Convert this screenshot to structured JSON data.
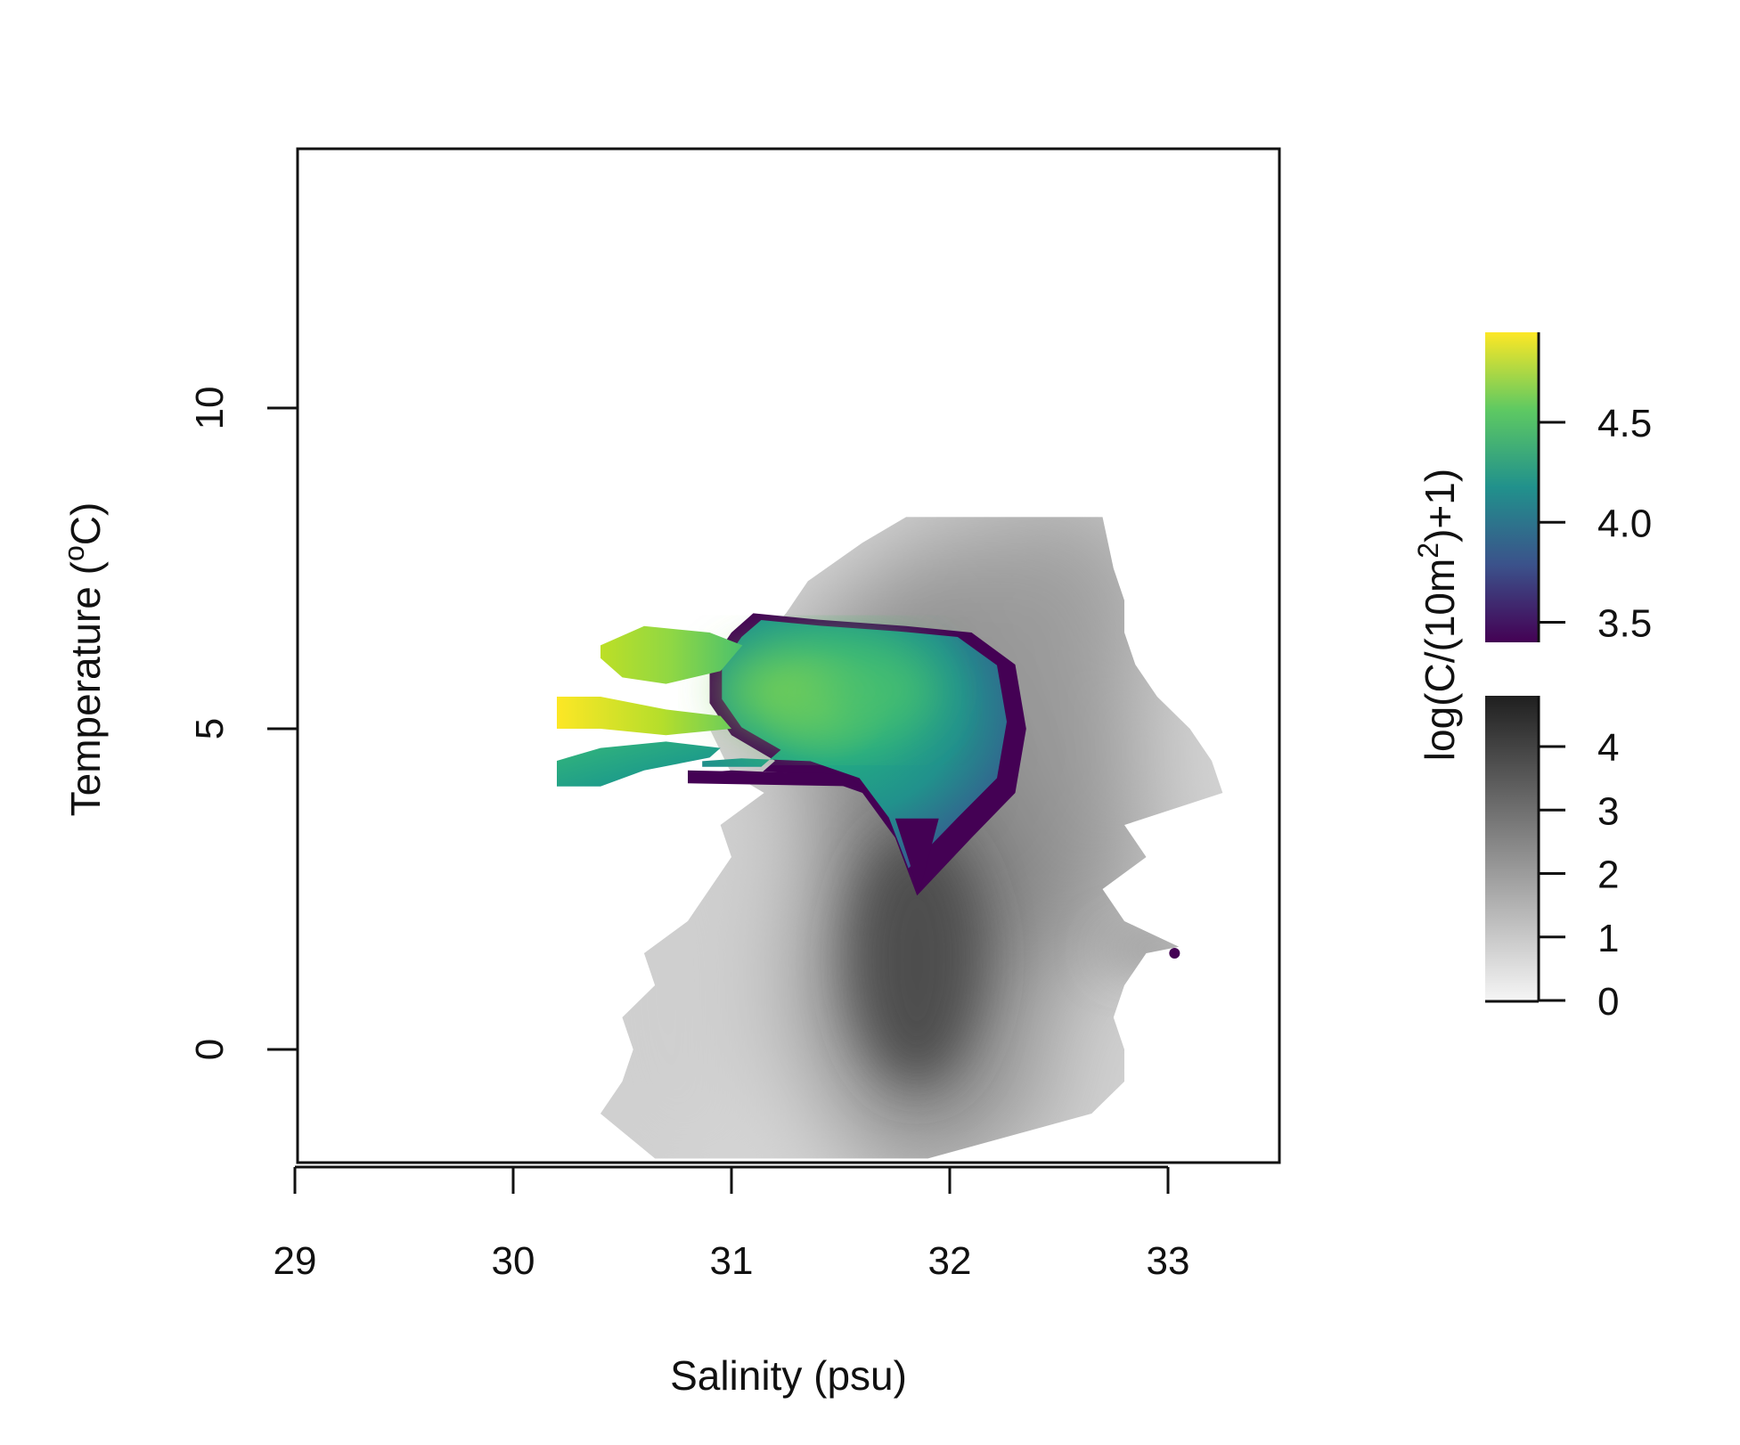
{
  "chart_data": {
    "type": "heatmap",
    "xlabel": "Salinity (psu)",
    "ylabel_parts": [
      "Temperature (",
      "o",
      "C)"
    ],
    "x_ticks": [
      29,
      30,
      31,
      32,
      33
    ],
    "y_ticks": [
      0,
      5,
      10
    ],
    "xlim": [
      29,
      33.5
    ],
    "ylim": [
      -1.8,
      14
    ],
    "colorbar_title_parts": [
      "log(C/(10m",
      "2",
      ")+1)"
    ],
    "colorbar_color": {
      "range": [
        3.4,
        4.95
      ],
      "ticks": [
        "3.5",
        "4.0",
        "4.5"
      ],
      "colors": [
        "#440154",
        "#3b528b",
        "#21918c",
        "#5ec962",
        "#fde725"
      ]
    },
    "colorbar_gray": {
      "range": [
        0,
        4.8
      ],
      "ticks": [
        "0",
        "1",
        "2",
        "3",
        "4"
      ],
      "colors": [
        "#f5f5f5",
        "#1f1f1f"
      ]
    },
    "gray_field": {
      "description_values": "background density log(C/(10m^2)+1), 0 to ~4.8",
      "left_edge": [
        [
          -1.7,
          30.65
        ],
        [
          -1.0,
          30.4
        ],
        [
          -0.5,
          30.5
        ],
        [
          0.0,
          30.55
        ],
        [
          0.5,
          30.5
        ],
        [
          1.0,
          30.65
        ],
        [
          1.5,
          30.6
        ],
        [
          2.0,
          30.8
        ],
        [
          2.5,
          30.9
        ],
        [
          3.0,
          31.0
        ],
        [
          3.5,
          30.95
        ],
        [
          4.0,
          31.15
        ],
        [
          4.3,
          31.0
        ],
        [
          5.0,
          30.9
        ],
        [
          6.0,
          31.05
        ],
        [
          6.8,
          31.25
        ],
        [
          7.3,
          31.35
        ],
        [
          7.9,
          31.6
        ],
        [
          8.3,
          31.8
        ]
      ],
      "right_edge": [
        [
          -1.7,
          31.9
        ],
        [
          -1.0,
          32.65
        ],
        [
          -0.5,
          32.8
        ],
        [
          0.0,
          32.8
        ],
        [
          0.5,
          32.75
        ],
        [
          1.0,
          32.8
        ],
        [
          1.5,
          32.9
        ],
        [
          1.6,
          33.05
        ],
        [
          2.0,
          32.8
        ],
        [
          2.5,
          32.7
        ],
        [
          3.0,
          32.9
        ],
        [
          3.5,
          32.8
        ],
        [
          4.0,
          33.25
        ],
        [
          4.5,
          33.2
        ],
        [
          5.0,
          33.1
        ],
        [
          5.5,
          32.95
        ],
        [
          6.0,
          32.85
        ],
        [
          6.5,
          32.8
        ],
        [
          7.0,
          32.8
        ],
        [
          7.5,
          32.75
        ],
        [
          8.3,
          32.7
        ]
      ],
      "max_center": {
        "salinity": 31.85,
        "temperature": 1.2
      },
      "peak_value": 4.4
    },
    "color_region": {
      "description_values": "high density log(C/(10m^2)+1), 3.4 to 4.95",
      "main_blob_outline": [
        [
          31.1,
          6.8
        ],
        [
          31.4,
          6.7
        ],
        [
          31.8,
          6.6
        ],
        [
          32.1,
          6.5
        ],
        [
          32.3,
          6.0
        ],
        [
          32.35,
          5.0
        ],
        [
          32.3,
          4.0
        ],
        [
          32.1,
          3.3
        ],
        [
          31.85,
          2.4
        ],
        [
          31.75,
          3.3
        ],
        [
          31.6,
          4.0
        ],
        [
          31.35,
          4.3
        ],
        [
          31.0,
          4.35
        ],
        [
          30.8,
          4.3
        ],
        [
          30.8,
          4.2
        ],
        [
          31.1,
          4.2
        ],
        [
          31.2,
          4.5
        ],
        [
          31.0,
          4.9
        ],
        [
          30.9,
          5.4
        ],
        [
          30.9,
          6.0
        ],
        [
          31.0,
          6.5
        ]
      ],
      "lobes": [
        {
          "outline": [
            [
              30.4,
              6.3
            ],
            [
              30.6,
              6.6
            ],
            [
              30.9,
              6.5
            ],
            [
              31.05,
              6.3
            ],
            [
              30.95,
              5.9
            ],
            [
              30.7,
              5.7
            ],
            [
              30.5,
              5.8
            ],
            [
              30.4,
              6.1
            ]
          ],
          "value": 4.8
        },
        {
          "outline": [
            [
              30.2,
              5.5
            ],
            [
              30.4,
              5.5
            ],
            [
              30.7,
              5.3
            ],
            [
              30.95,
              5.2
            ],
            [
              31.0,
              5.0
            ],
            [
              30.7,
              4.9
            ],
            [
              30.4,
              5.0
            ],
            [
              30.2,
              5.0
            ]
          ],
          "value": 4.9
        },
        {
          "outline": [
            [
              30.2,
              4.5
            ],
            [
              30.4,
              4.7
            ],
            [
              30.7,
              4.8
            ],
            [
              30.95,
              4.7
            ],
            [
              30.9,
              4.55
            ],
            [
              30.6,
              4.35
            ],
            [
              30.4,
              4.1
            ],
            [
              30.2,
              4.1
            ]
          ],
          "value": 4.3
        }
      ],
      "core": {
        "salinity": 31.5,
        "temperature": 5.6,
        "value": 4.6
      }
    }
  }
}
